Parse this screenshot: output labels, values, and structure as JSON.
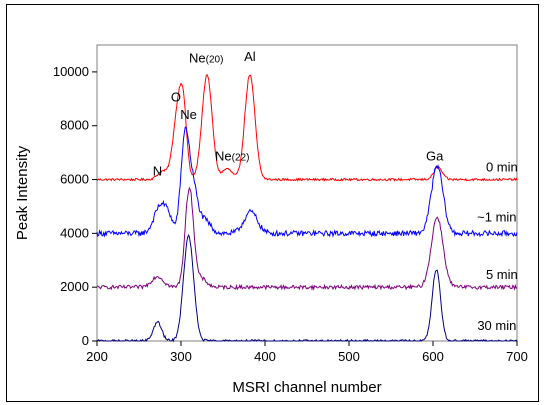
{
  "chart_data": {
    "type": "line",
    "title": "",
    "xlabel": "MSRI channel number",
    "ylabel": "Peak Intensity",
    "xlim": [
      200,
      700
    ],
    "ylim": [
      0,
      11000
    ],
    "x_ticks": [
      "200",
      "300",
      "400",
      "500",
      "600",
      "700"
    ],
    "y_ticks": [
      "0",
      "2000",
      "4000",
      "6000",
      "8000",
      "10000"
    ],
    "grid": false,
    "legend": "none",
    "series": [
      {
        "name": "0 min",
        "color": "#ff0000",
        "baseline": 6000,
        "peaks": [
          {
            "x": 278,
            "height": 300,
            "width": 6
          },
          {
            "x": 297,
            "height": 2700,
            "width": 6
          },
          {
            "x": 303,
            "height": 1600,
            "width": 4
          },
          {
            "x": 331,
            "height": 3900,
            "width": 6
          },
          {
            "x": 355,
            "height": 400,
            "width": 6
          },
          {
            "x": 382,
            "height": 3900,
            "width": 6
          },
          {
            "x": 606,
            "height": 450,
            "width": 5
          }
        ],
        "noise": 40
      },
      {
        "name": "~1 min",
        "color": "#0000ff",
        "baseline": 4000,
        "peaks": [
          {
            "x": 275,
            "height": 1000,
            "width": 7
          },
          {
            "x": 285,
            "height": 500,
            "width": 5
          },
          {
            "x": 305,
            "height": 3700,
            "width": 5
          },
          {
            "x": 315,
            "height": 1500,
            "width": 5
          },
          {
            "x": 328,
            "height": 500,
            "width": 7
          },
          {
            "x": 383,
            "height": 800,
            "width": 8
          },
          {
            "x": 605,
            "height": 2500,
            "width": 7
          }
        ],
        "noise": 100
      },
      {
        "name": "5 min",
        "color": "#800080",
        "baseline": 2000,
        "peaks": [
          {
            "x": 272,
            "height": 400,
            "width": 7
          },
          {
            "x": 310,
            "height": 3700,
            "width": 5
          },
          {
            "x": 325,
            "height": 300,
            "width": 6
          },
          {
            "x": 605,
            "height": 2600,
            "width": 7
          }
        ],
        "noise": 70
      },
      {
        "name": "30 min",
        "color": "#000080",
        "baseline": 0,
        "peaks": [
          {
            "x": 272,
            "height": 700,
            "width": 5
          },
          {
            "x": 309,
            "height": 3900,
            "width": 6
          },
          {
            "x": 604,
            "height": 2650,
            "width": 5
          }
        ],
        "noise": 50
      }
    ],
    "annotations": [
      {
        "text": "N",
        "sub": "",
        "x": 272,
        "y": 6150
      },
      {
        "text": "O",
        "sub": "",
        "x": 294,
        "y": 8900
      },
      {
        "text": "Ne",
        "sub": "(20)",
        "x": 330,
        "y": 10350
      },
      {
        "text": "Al",
        "sub": "",
        "x": 382,
        "y": 10400
      },
      {
        "text": "Ne",
        "sub": "",
        "x": 309,
        "y": 8250
      },
      {
        "text": "Ne",
        "sub": "(22)",
        "x": 361,
        "y": 6700
      },
      {
        "text": "Ga",
        "sub": "",
        "x": 602,
        "y": 6700
      },
      {
        "text": "0 min",
        "sub": "",
        "x": 682,
        "y": 6300
      },
      {
        "text": "~1 min",
        "sub": "",
        "x": 676,
        "y": 4450
      },
      {
        "text": "5 min",
        "sub": "",
        "x": 682,
        "y": 2300
      },
      {
        "text": "30 min",
        "sub": "",
        "x": 676,
        "y": 400
      }
    ]
  }
}
